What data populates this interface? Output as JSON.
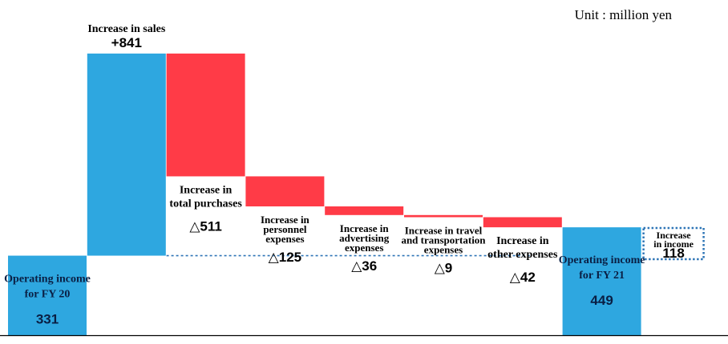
{
  "unit_label": "Unit : million yen",
  "colors": {
    "increase": "#2EA7E0",
    "decrease": "#FF3B47",
    "total": "#2EA7E0",
    "connector": "#2E75B6",
    "axis": "#000000",
    "text": "#000000"
  },
  "chart_data": {
    "type": "bar",
    "subtype": "waterfall",
    "title": "",
    "ylim": [
      0,
      900
    ],
    "steps": [
      {
        "kind": "total",
        "label_lines": [
          "Operating income",
          "for FY 20"
        ],
        "value": 331,
        "value_text": "331"
      },
      {
        "kind": "increase",
        "label_lines": [
          "Increase in sales"
        ],
        "value": 841,
        "value_text": "+841"
      },
      {
        "kind": "decrease",
        "label_lines": [
          "Increase in",
          "total purchases"
        ],
        "value": -511,
        "value_text": "△511"
      },
      {
        "kind": "decrease",
        "label_lines": [
          "Increase in",
          "personnel",
          "expenses"
        ],
        "value": -125,
        "value_text": "△125"
      },
      {
        "kind": "decrease",
        "label_lines": [
          "Increase in",
          "advertising",
          "expenses"
        ],
        "value": -36,
        "value_text": "△36"
      },
      {
        "kind": "decrease",
        "label_lines": [
          "Increase in travel",
          "and transportation",
          "expenses"
        ],
        "value": -9,
        "value_text": "△9"
      },
      {
        "kind": "decrease",
        "label_lines": [
          "Increase in",
          "other expenses"
        ],
        "value": -42,
        "value_text": "△42"
      },
      {
        "kind": "total",
        "label_lines": [
          "Operating income",
          "for FY 21"
        ],
        "value": 449,
        "value_text": "449"
      }
    ],
    "difference": {
      "label_lines": [
        "Increase",
        "in income"
      ],
      "value": 118,
      "value_text": "118"
    }
  }
}
